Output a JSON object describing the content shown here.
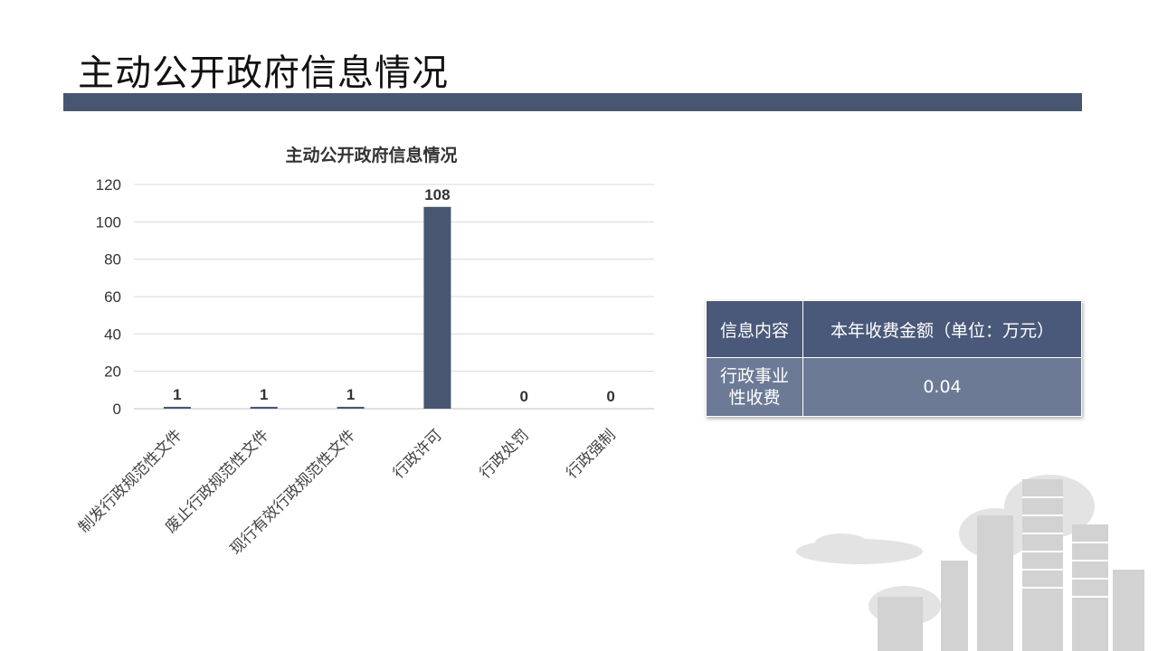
{
  "page": {
    "title": "主动公开政府信息情况"
  },
  "chart_data": {
    "type": "bar",
    "title": "主动公开政府信息情况",
    "categories": [
      "制发行政规范性文件",
      "废止行政规范性文件",
      "现行有效行政规范性文件",
      "行政许可",
      "行政处罚",
      "行政强制"
    ],
    "values": [
      1,
      1,
      1,
      108,
      0,
      0
    ],
    "data_labels": [
      "1",
      "1",
      "1",
      "108",
      "0",
      "0"
    ],
    "ylim": [
      0,
      120
    ],
    "yticks": [
      0,
      20,
      40,
      60,
      80,
      100,
      120
    ],
    "grid": true,
    "bar_color": "#485672",
    "xlabel": "",
    "ylabel": ""
  },
  "fee_table": {
    "header": {
      "content": "信息内容",
      "amount": "本年收费金额（单位：万元）"
    },
    "row": {
      "content_line1": "行政事业",
      "content_line2": "性收费",
      "amount": "0.04"
    },
    "colors": {
      "header_bg": "#4a5979",
      "row_bg": "#6c7a96"
    }
  }
}
